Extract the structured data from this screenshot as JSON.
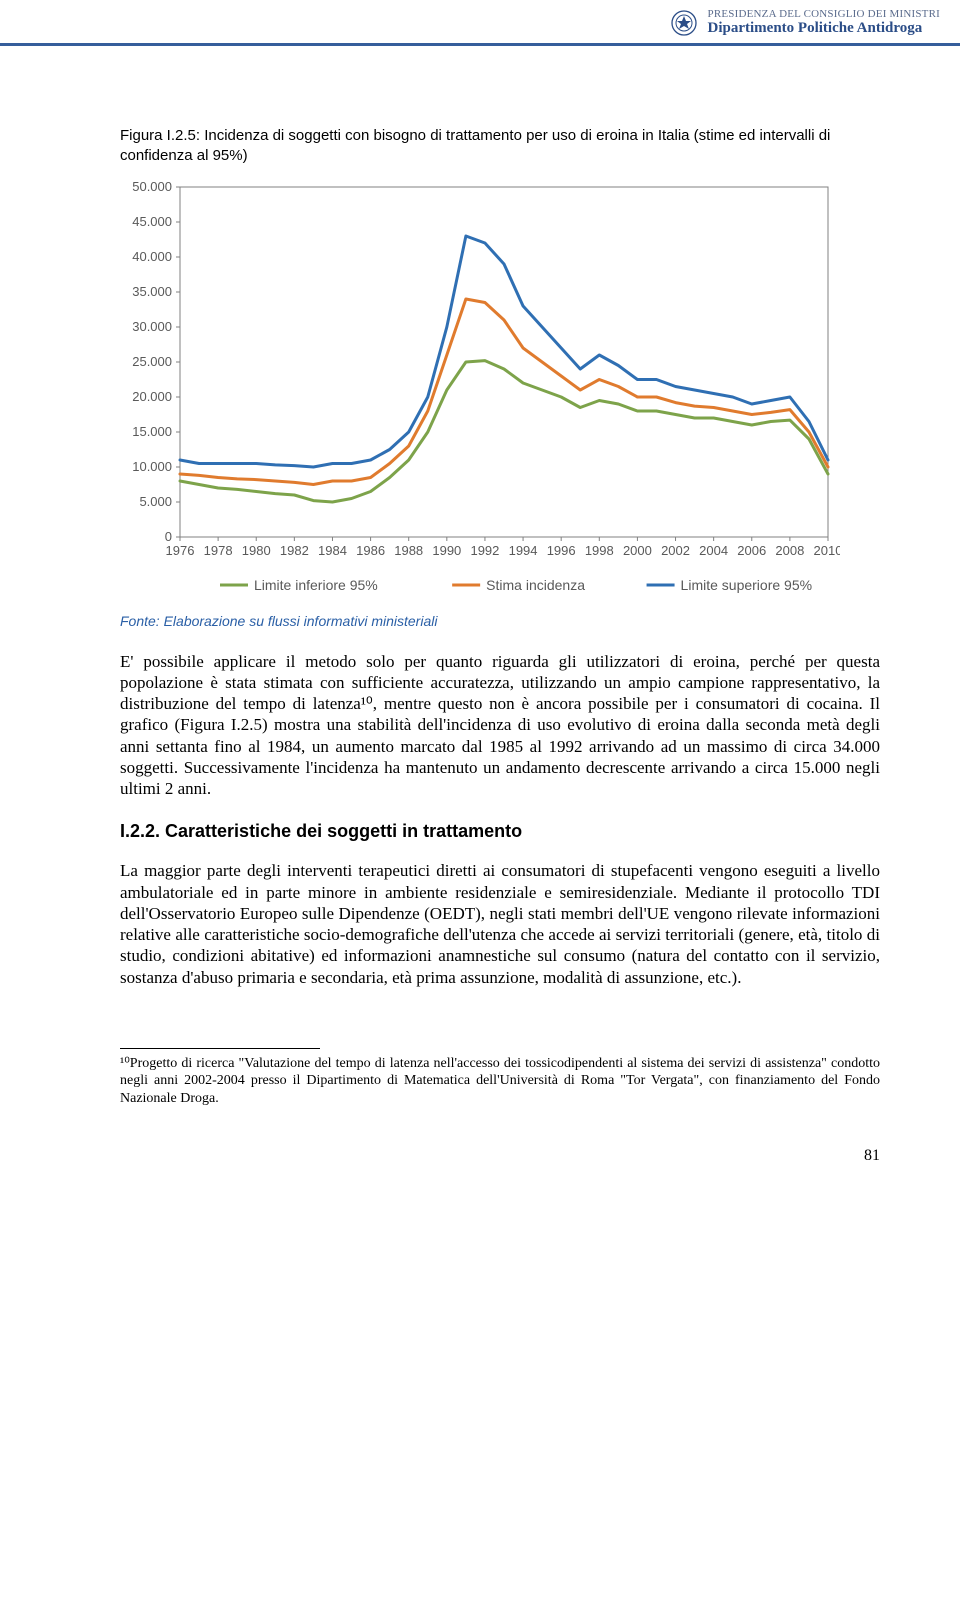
{
  "header": {
    "line1": "PRESIDENZA DEL CONSIGLIO DEI MINISTRI",
    "line2": "Dipartimento Politiche Antidroga"
  },
  "figure": {
    "caption": "Figura I.2.5: Incidenza di soggetti con bisogno di trattamento per uso di eroina in Italia (stime ed intervalli di confidenza al 95%)"
  },
  "chart": {
    "type": "line",
    "background_color": "#ffffff",
    "plot_border_color": "#808080",
    "xlim": [
      1976,
      2010
    ],
    "ylim": [
      0,
      50000
    ],
    "ytick_step": 5000,
    "yticks": [
      0,
      5000,
      10000,
      15000,
      20000,
      25000,
      30000,
      35000,
      40000,
      45000,
      50000
    ],
    "ytick_labels": [
      "0",
      "5.000",
      "10.000",
      "15.000",
      "20.000",
      "25.000",
      "30.000",
      "35.000",
      "40.000",
      "45.000",
      "50.000"
    ],
    "xticks": [
      1976,
      1978,
      1980,
      1982,
      1984,
      1986,
      1988,
      1990,
      1992,
      1994,
      1996,
      1998,
      2000,
      2002,
      2004,
      2006,
      2008,
      2010
    ],
    "xtick_labels": [
      "1976",
      "1978",
      "1980",
      "1982",
      "1984",
      "1986",
      "1988",
      "1990",
      "1992",
      "1994",
      "1996",
      "1998",
      "2000",
      "2002",
      "2004",
      "2006",
      "2008",
      "2010"
    ],
    "line_width": 3,
    "label_fontsize": 13,
    "series": [
      {
        "name": "Limite inferiore 95%",
        "color": "#7da34a",
        "years": [
          1976,
          1977,
          1978,
          1979,
          1980,
          1981,
          1982,
          1983,
          1984,
          1985,
          1986,
          1987,
          1988,
          1989,
          1990,
          1991,
          1992,
          1993,
          1994,
          1995,
          1996,
          1997,
          1998,
          1999,
          2000,
          2001,
          2002,
          2003,
          2004,
          2005,
          2006,
          2007,
          2008,
          2009,
          2010
        ],
        "values": [
          8000,
          7500,
          7000,
          6800,
          6500,
          6200,
          6000,
          5200,
          5000,
          5500,
          6500,
          8500,
          11000,
          15000,
          21000,
          25000,
          25200,
          24000,
          22000,
          21000,
          20000,
          18500,
          19500,
          19000,
          18000,
          18000,
          17500,
          17000,
          17000,
          16500,
          16000,
          16500,
          16700,
          14000,
          9000
        ]
      },
      {
        "name": "Stima incidenza",
        "color": "#e07b2e",
        "years": [
          1976,
          1977,
          1978,
          1979,
          1980,
          1981,
          1982,
          1983,
          1984,
          1985,
          1986,
          1987,
          1988,
          1989,
          1990,
          1991,
          1992,
          1993,
          1994,
          1995,
          1996,
          1997,
          1998,
          1999,
          2000,
          2001,
          2002,
          2003,
          2004,
          2005,
          2006,
          2007,
          2008,
          2009,
          2010
        ],
        "values": [
          9000,
          8800,
          8500,
          8300,
          8200,
          8000,
          7800,
          7500,
          8000,
          8000,
          8500,
          10500,
          13000,
          18000,
          26000,
          34000,
          33500,
          31000,
          27000,
          25000,
          23000,
          21000,
          22500,
          21500,
          20000,
          20000,
          19200,
          18700,
          18500,
          18000,
          17500,
          17800,
          18200,
          15000,
          10000
        ]
      },
      {
        "name": "Limite superiore 95%",
        "color": "#2f6fb3",
        "years": [
          1976,
          1977,
          1978,
          1979,
          1980,
          1981,
          1982,
          1983,
          1984,
          1985,
          1986,
          1987,
          1988,
          1989,
          1990,
          1991,
          1992,
          1993,
          1994,
          1995,
          1996,
          1997,
          1998,
          1999,
          2000,
          2001,
          2002,
          2003,
          2004,
          2005,
          2006,
          2007,
          2008,
          2009,
          2010
        ],
        "values": [
          11000,
          10500,
          10500,
          10500,
          10500,
          10300,
          10200,
          10000,
          10500,
          10500,
          11000,
          12500,
          15000,
          20000,
          30000,
          43000,
          42000,
          39000,
          33000,
          30000,
          27000,
          24000,
          26000,
          24500,
          22500,
          22500,
          21500,
          21000,
          20500,
          20000,
          19000,
          19500,
          20000,
          16500,
          11000
        ]
      }
    ],
    "legend": {
      "items": [
        "Limite inferiore 95%",
        "Stima incidenza",
        "Limite superiore 95%"
      ],
      "colors": [
        "#7da34a",
        "#e07b2e",
        "#2f6fb3"
      ]
    }
  },
  "source": "Fonte: Elaborazione su flussi informativi ministeriali",
  "para1": "E' possibile applicare il metodo solo per quanto riguarda gli utilizzatori di eroina, perché per questa popolazione è stata stimata con sufficiente accuratezza, utilizzando un ampio campione rappresentativo, la distribuzione del tempo di latenza¹⁰, mentre questo non è ancora possibile per i consumatori di cocaina.",
  "para2": "Il grafico (Figura I.2.5) mostra una stabilità dell'incidenza di uso evolutivo di eroina dalla seconda metà degli anni settanta fino al 1984, un aumento marcato dal 1985 al 1992 arrivando ad un massimo di circa 34.000 soggetti. Successivamente l'incidenza ha mantenuto un andamento decrescente arrivando a circa 15.000 negli ultimi 2 anni.",
  "section_heading": "I.2.2. Caratteristiche dei soggetti in trattamento",
  "para3": "La maggior parte degli interventi terapeutici diretti ai consumatori di stupefacenti vengono eseguiti a livello ambulatoriale ed in parte minore in ambiente residenziale e semiresidenziale. Mediante il protocollo TDI dell'Osservatorio Europeo sulle Dipendenze (OEDT), negli stati membri dell'UE vengono rilevate informazioni relative alle caratteristiche socio-demografiche dell'utenza che accede ai servizi territoriali (genere, età, titolo di studio, condizioni abitative) ed informazioni anamnestiche sul consumo (natura del contatto con il servizio, sostanza d'abuso primaria e secondaria, età prima assunzione, modalità di assunzione, etc.).",
  "footnote": "¹⁰Progetto di ricerca \"Valutazione del tempo di latenza nell'accesso dei tossicodipendenti al sistema dei servizi di assistenza\" condotto negli anni 2002-2004 presso il Dipartimento di Matematica dell'Università di Roma \"Tor Vergata\", con finanziamento del Fondo Nazionale Droga.",
  "page_number": "81"
}
